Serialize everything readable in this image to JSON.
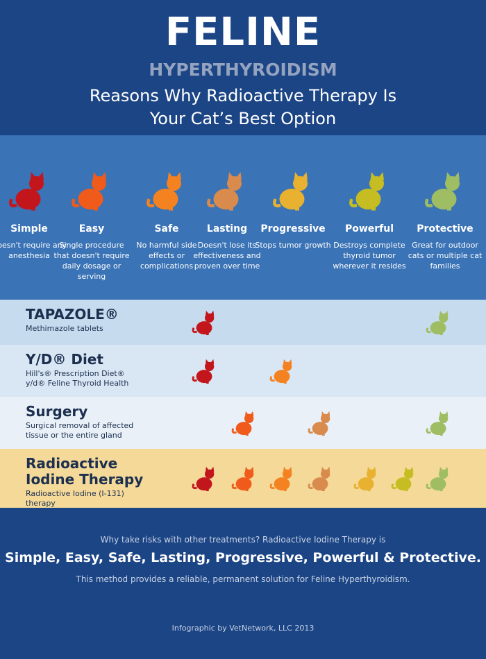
{
  "header": {
    "title": "FELINE",
    "subtitle": "HYPERTHYROIDISM",
    "tagline": "Reasons Why Radioactive Therapy Is Your Cat’s Best Option"
  },
  "benefits": [
    {
      "name": "Simple",
      "description": "Doesn't require any anesthesia"
    },
    {
      "name": "Easy",
      "description": "Single procedure that doesn't require daily dosage or serving"
    },
    {
      "name": "Safe",
      "description": "No harmful side effects or complications"
    },
    {
      "name": "Lasting",
      "description": "Doesn't lose its effectiveness and proven over time"
    },
    {
      "name": "Progressive",
      "description": "Stops tumor growth"
    },
    {
      "name": "Powerful",
      "description": "Destroys complete thyroid tumor wherever it resides"
    },
    {
      "name": "Protective",
      "description": "Great for outdoor cats or multiple cat families"
    }
  ],
  "treatments": [
    {
      "name": "TAPAZOLE®",
      "description": "Methimazole tablets"
    },
    {
      "name": "Y/D® Diet",
      "description": "Hill's® Prescription Diet® y/d® Feline Thyroid Health"
    },
    {
      "name": "Surgery",
      "description": "Surgical removal of affected tissue or the entire gland"
    },
    {
      "name": "Radioactive Iodine Therapy",
      "description": "Radioactive Iodine (I-131) therapy"
    }
  ],
  "footer": {
    "question": "Why take risks with other treatments? Radioactive Iodine Therapy is",
    "summary": "Simple, Easy, Safe, Lasting, Progressive, Powerful & Protective.",
    "note": "This method provides a reliable, permanent solution for Feline Hyperthyroidism.",
    "credit": "Infographic by VetNetwork, LLC 2013"
  }
}
